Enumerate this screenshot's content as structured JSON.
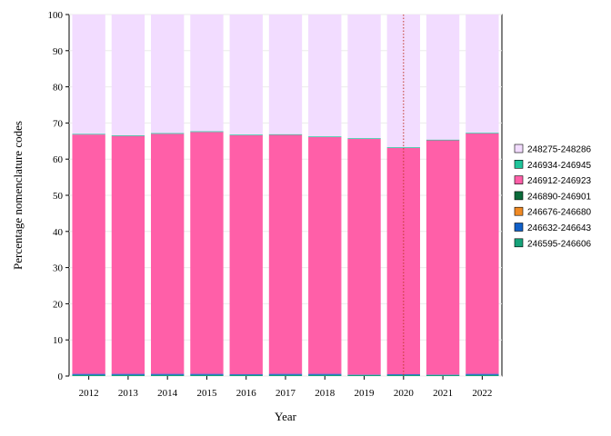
{
  "chart_data": {
    "type": "bar",
    "stacked": true,
    "xlabel": "Year",
    "ylabel": "Percentage nomenclature codes",
    "ylim": [
      0,
      100
    ],
    "yticks": [
      0,
      10,
      20,
      30,
      40,
      50,
      60,
      70,
      80,
      90,
      100
    ],
    "categories": [
      "2012",
      "2013",
      "2014",
      "2015",
      "2016",
      "2017",
      "2018",
      "2019",
      "2020",
      "2021",
      "2022"
    ],
    "reference_line": {
      "x": "2020",
      "color": "#c0392b",
      "style": "dotted"
    },
    "legend_position": "right",
    "series": [
      {
        "name": "246595-246606",
        "color": "#16a37a",
        "values": [
          0.3,
          0.3,
          0.3,
          0.3,
          0.3,
          0.3,
          0.3,
          0.3,
          0.3,
          0.3,
          0.3
        ]
      },
      {
        "name": "246632-246643",
        "color": "#1060c8",
        "values": [
          0.3,
          0.3,
          0.3,
          0.3,
          0.2,
          0.3,
          0.3,
          0.1,
          0.2,
          0.1,
          0.3
        ]
      },
      {
        "name": "246676-246680",
        "color": "#f08a24",
        "values": [
          0.0,
          0.0,
          0.0,
          0.0,
          0.0,
          0.0,
          0.0,
          0.0,
          0.0,
          0.0,
          0.0
        ]
      },
      {
        "name": "246890-246901",
        "color": "#0b6b3a",
        "values": [
          0.0,
          0.0,
          0.0,
          0.0,
          0.0,
          0.0,
          0.0,
          0.0,
          0.0,
          0.0,
          0.0
        ]
      },
      {
        "name": "246912-246923",
        "color": "#ff5fa8",
        "values": [
          66.2,
          65.8,
          66.4,
          66.9,
          66.1,
          66.1,
          65.5,
          65.2,
          62.6,
          64.8,
          66.5
        ]
      },
      {
        "name": "246934-246945",
        "color": "#1fc49a",
        "values": [
          0.2,
          0.2,
          0.2,
          0.2,
          0.2,
          0.2,
          0.2,
          0.2,
          0.2,
          0.2,
          0.2
        ]
      },
      {
        "name": "248275-248286",
        "color": "#f2dcff",
        "values": [
          33.0,
          33.4,
          32.8,
          32.3,
          33.2,
          33.1,
          33.7,
          34.2,
          36.7,
          34.6,
          32.7
        ]
      }
    ]
  }
}
